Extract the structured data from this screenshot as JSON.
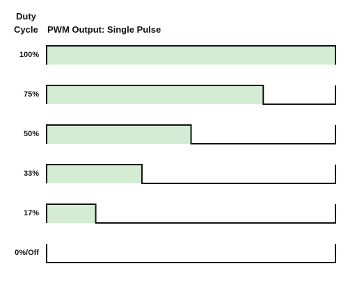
{
  "header": {
    "duty_line1": "Duty",
    "duty_line2": "Cycle",
    "title": "PWM Output: Single Pulse"
  },
  "colors": {
    "fill": "#d5ecd4",
    "line": "#111111"
  },
  "rows": [
    {
      "label": "100%",
      "duty": 1.0
    },
    {
      "label": "75%",
      "duty": 0.75
    },
    {
      "label": "50%",
      "duty": 0.5
    },
    {
      "label": "33%",
      "duty": 0.33
    },
    {
      "label": "17%",
      "duty": 0.17
    },
    {
      "label": "0%/Off",
      "duty": 0.0
    }
  ]
}
